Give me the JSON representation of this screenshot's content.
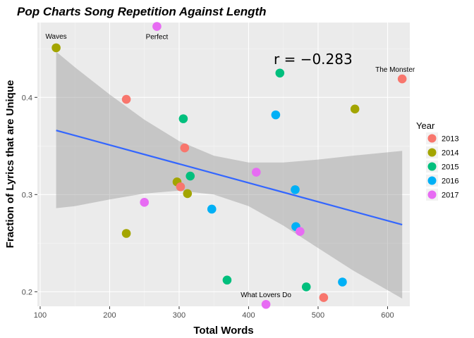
{
  "chart_data": {
    "type": "scatter",
    "title": "Pop Charts Song Repetition Against Length",
    "xlabel": "Total Words",
    "ylabel": "Fraction of Lyrics that are Unique",
    "xlim": [
      96,
      632
    ],
    "ylim": [
      0.185,
      0.477
    ],
    "x_ticks": [
      100,
      200,
      300,
      400,
      500,
      600
    ],
    "y_ticks": [
      0.2,
      0.3,
      0.4
    ],
    "x_tick_labels": [
      "100",
      "200",
      "300",
      "400",
      "500",
      "600"
    ],
    "y_tick_labels": [
      "0.2",
      "0.3",
      "0.4"
    ],
    "grid": true,
    "annotation": "r = −0.283",
    "legend": {
      "title": "Year",
      "position": "right",
      "entries": [
        {
          "label": "2013",
          "color": "#F8766D"
        },
        {
          "label": "2014",
          "color": "#A3A500"
        },
        {
          "label": "2015",
          "color": "#00BF7D"
        },
        {
          "label": "2016",
          "color": "#00B0F6"
        },
        {
          "label": "2017",
          "color": "#E76BF3"
        }
      ]
    },
    "points": [
      {
        "x": 123,
        "y": 0.451,
        "year": "2014",
        "label": "Waves"
      },
      {
        "x": 268,
        "y": 0.473,
        "year": "2017",
        "label": "Perfect"
      },
      {
        "x": 621,
        "y": 0.419,
        "year": "2013",
        "label": "The Monster"
      },
      {
        "x": 425,
        "y": 0.187,
        "year": "2017",
        "label": "What Lovers Do"
      },
      {
        "x": 224,
        "y": 0.398,
        "year": "2013",
        "label": ""
      },
      {
        "x": 306,
        "y": 0.378,
        "year": "2015",
        "label": ""
      },
      {
        "x": 308,
        "y": 0.348,
        "year": "2013",
        "label": ""
      },
      {
        "x": 445,
        "y": 0.425,
        "year": "2015",
        "label": ""
      },
      {
        "x": 439,
        "y": 0.382,
        "year": "2016",
        "label": ""
      },
      {
        "x": 553,
        "y": 0.388,
        "year": "2014",
        "label": ""
      },
      {
        "x": 411,
        "y": 0.323,
        "year": "2017",
        "label": ""
      },
      {
        "x": 316,
        "y": 0.319,
        "year": "2015",
        "label": ""
      },
      {
        "x": 297,
        "y": 0.313,
        "year": "2014",
        "label": ""
      },
      {
        "x": 302,
        "y": 0.308,
        "year": "2013",
        "label": ""
      },
      {
        "x": 312,
        "y": 0.301,
        "year": "2014",
        "label": ""
      },
      {
        "x": 467,
        "y": 0.305,
        "year": "2016",
        "label": ""
      },
      {
        "x": 250,
        "y": 0.292,
        "year": "2017",
        "label": ""
      },
      {
        "x": 347,
        "y": 0.285,
        "year": "2016",
        "label": ""
      },
      {
        "x": 468,
        "y": 0.267,
        "year": "2016",
        "label": ""
      },
      {
        "x": 474,
        "y": 0.262,
        "year": "2017",
        "label": ""
      },
      {
        "x": 224,
        "y": 0.26,
        "year": "2014",
        "label": ""
      },
      {
        "x": 369,
        "y": 0.212,
        "year": "2015",
        "label": ""
      },
      {
        "x": 483,
        "y": 0.205,
        "year": "2015",
        "label": ""
      },
      {
        "x": 535,
        "y": 0.21,
        "year": "2016",
        "label": ""
      },
      {
        "x": 508,
        "y": 0.194,
        "year": "2013",
        "label": ""
      }
    ],
    "fit_line": {
      "x": [
        123,
        621
      ],
      "y": [
        0.366,
        0.269
      ],
      "color": "#3366FF"
    },
    "confidence_band": {
      "x": [
        123,
        150,
        200,
        250,
        300,
        350,
        400,
        450,
        500,
        550,
        621
      ],
      "upper": [
        0.447,
        0.431,
        0.403,
        0.377,
        0.355,
        0.34,
        0.333,
        0.333,
        0.336,
        0.34,
        0.345
      ],
      "lower": [
        0.286,
        0.288,
        0.295,
        0.301,
        0.304,
        0.3,
        0.288,
        0.268,
        0.245,
        0.222,
        0.193
      ]
    }
  }
}
